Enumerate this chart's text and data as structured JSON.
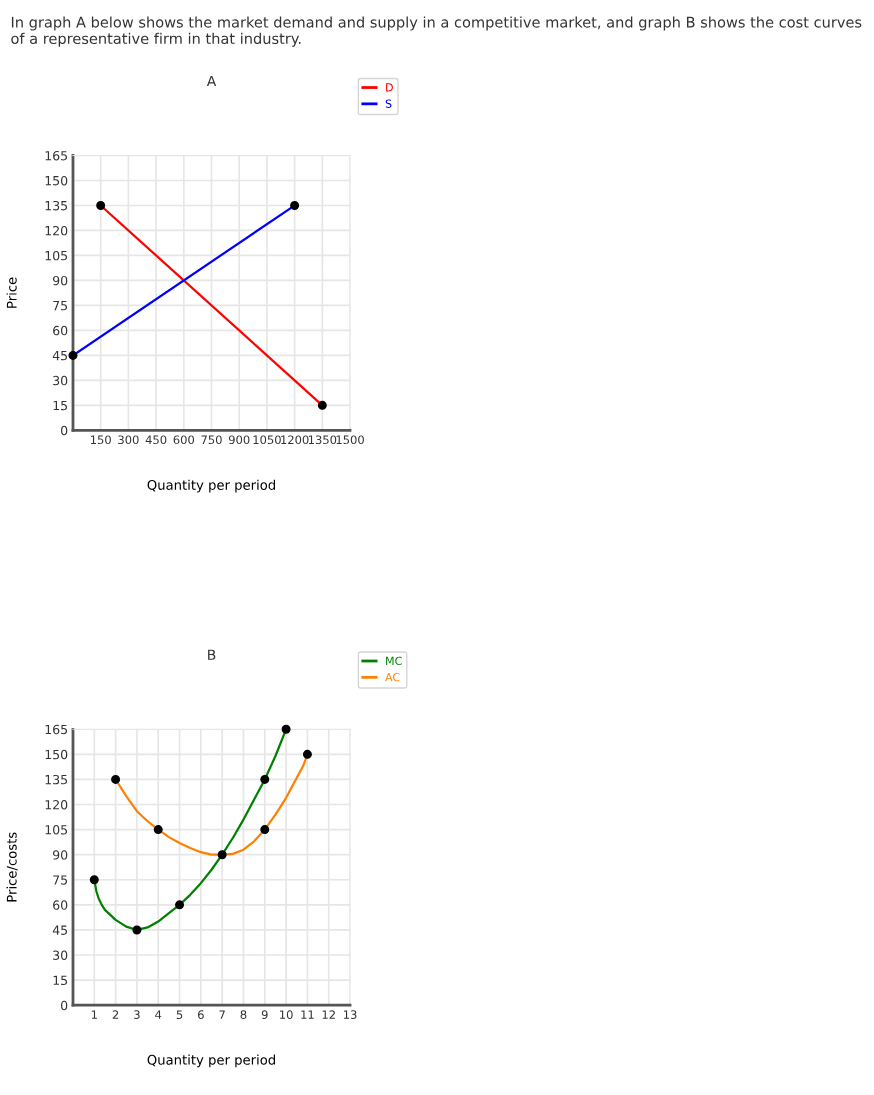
{
  "chart_data": [
    {
      "type": "line",
      "title": "A",
      "xlabel": "Quantity per period",
      "ylabel": "Price",
      "annotations": [
        "In graph A below shows the market demand and supply in a competitive market, and graph B shows the cost curves of a representative firm in that industry."
      ],
      "xlim": [
        0,
        1500
      ],
      "xticks": [
        150,
        300,
        450,
        600,
        750,
        900,
        1050,
        1200,
        1350,
        1500
      ],
      "ylim": [
        0,
        165
      ],
      "yticks": [
        0,
        15,
        30,
        45,
        60,
        75,
        90,
        105,
        120,
        135,
        150,
        165
      ],
      "grid": true,
      "legend": "top right",
      "line_style": "solid",
      "series": [
        {
          "name": "D",
          "color": "#ff0000",
          "x": [
            150,
            1350
          ],
          "values": [
            135,
            15
          ]
        },
        {
          "name": "S",
          "color": "#0000ff",
          "x": [
            0,
            1200
          ],
          "values": [
            45,
            135
          ]
        },
        {
          "type": "scatter",
          "marker": "circle",
          "color": "#000000",
          "x": [
            150,
            1350,
            0,
            1200
          ],
          "values": [
            135,
            15,
            45,
            135
          ]
        }
      ]
    },
    {
      "type": "line",
      "title": "B",
      "xlabel": "Quantity per period",
      "ylabel": "Price/costs",
      "xlim": [
        0,
        13
      ],
      "xticks": [
        1,
        2,
        3,
        4,
        5,
        6,
        7,
        8,
        9,
        10,
        11,
        12,
        13
      ],
      "ylim": [
        0,
        165
      ],
      "yticks": [
        0,
        15,
        30,
        45,
        60,
        75,
        90,
        105,
        120,
        135,
        150,
        165
      ],
      "grid": true,
      "legend": "top right",
      "line_style": "solid",
      "series": [
        {
          "name": "MC",
          "color": "#008000",
          "x": [
            1,
            1.1,
            1.2,
            1.35,
            1.5,
            1.75,
            2,
            2.5,
            3,
            3.5,
            4,
            4.5,
            5,
            5.5,
            6,
            6.5,
            7,
            7.5,
            8,
            8.5,
            9,
            9.5,
            10
          ],
          "values": [
            75,
            68,
            64,
            60,
            57,
            54,
            51,
            47,
            45,
            46.5,
            50,
            55,
            60,
            66,
            73,
            81,
            90,
            100,
            111,
            123,
            135,
            149,
            165
          ]
        },
        {
          "name": "AC",
          "color": "#ff8000",
          "x": [
            2,
            2.5,
            3,
            3.5,
            4,
            4.5,
            5,
            5.5,
            6,
            6.5,
            7,
            7.5,
            8,
            8.5,
            9,
            9.5,
            10,
            10.5,
            10.8,
            11
          ],
          "values": [
            135,
            125,
            116,
            110,
            105,
            100.5,
            97,
            94,
            91.5,
            90,
            90,
            90.5,
            93,
            98,
            105,
            114,
            124,
            136,
            143,
            150
          ]
        },
        {
          "type": "scatter",
          "marker": "circle",
          "color": "#000000",
          "x": [
            1,
            3,
            5,
            7,
            9,
            10,
            2,
            4,
            9,
            11
          ],
          "values": [
            75,
            45,
            60,
            90,
            135,
            165,
            135,
            105,
            105,
            150
          ]
        }
      ]
    }
  ]
}
